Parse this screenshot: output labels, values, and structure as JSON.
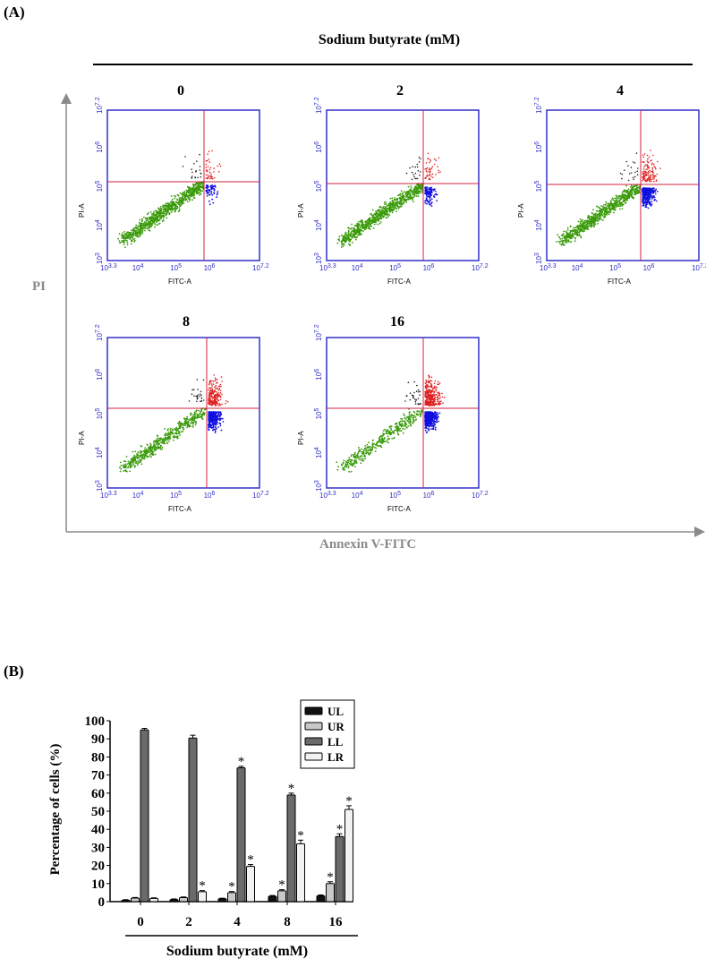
{
  "panel_a": {
    "label": "(A)",
    "header_title": "Sodium butyrate (mM)",
    "x_axis_title": "Annexin V-FITC",
    "y_axis_title": "PI",
    "plot_x_label": "FITC-A",
    "plot_y_label": "PI-A",
    "x_ticks": [
      "10^3.3",
      "10^4",
      "10^5",
      "10^6",
      "10^7.2"
    ],
    "y_ticks": [
      "10^3",
      "10^4",
      "10^5",
      "10^6",
      "10^7.2"
    ],
    "plots": [
      {
        "title": "0"
      },
      {
        "title": "2"
      },
      {
        "title": "4"
      },
      {
        "title": "8"
      },
      {
        "title": "16"
      }
    ],
    "colors": {
      "LL": "#3a9a0a",
      "LR": "#1010e0",
      "UR": "#e02020",
      "UL": "#222222",
      "frame": "#3030c8",
      "gate": "#d02040"
    }
  },
  "panel_b": {
    "label": "(B)",
    "chart_data": {
      "type": "bar",
      "ylabel": "Percentage of cells (%)",
      "xlabel": "Sodium butyrate (mM)",
      "categories": [
        "0",
        "2",
        "4",
        "8",
        "16"
      ],
      "ylim": [
        0,
        100
      ],
      "yticks": [
        "0",
        "10",
        "20",
        "30",
        "40",
        "50",
        "60",
        "70",
        "80",
        "90",
        "100"
      ],
      "series": [
        {
          "name": "UL",
          "values": [
            0.8,
            1.2,
            1.6,
            3.0,
            3.2
          ],
          "errors": [
            0.3,
            0.3,
            0.3,
            0.4,
            0.5
          ],
          "stars": [
            false,
            false,
            false,
            false,
            false
          ]
        },
        {
          "name": "UR",
          "values": [
            2.0,
            2.2,
            5.0,
            6.0,
            10.0
          ],
          "errors": [
            0.3,
            0.4,
            0.6,
            0.6,
            1.0
          ],
          "stars": [
            false,
            false,
            true,
            true,
            true
          ]
        },
        {
          "name": "LL",
          "values": [
            95.0,
            90.5,
            74.0,
            59.0,
            36.0
          ],
          "errors": [
            0.8,
            1.5,
            0.8,
            1.0,
            1.5
          ],
          "stars": [
            false,
            false,
            true,
            true,
            true
          ]
        },
        {
          "name": "LR",
          "values": [
            1.8,
            5.5,
            19.5,
            32.0,
            51.0
          ],
          "errors": [
            0.3,
            0.6,
            1.0,
            2.0,
            2.0
          ],
          "stars": [
            false,
            true,
            true,
            true,
            true
          ]
        }
      ],
      "star_symbol": "*"
    }
  }
}
